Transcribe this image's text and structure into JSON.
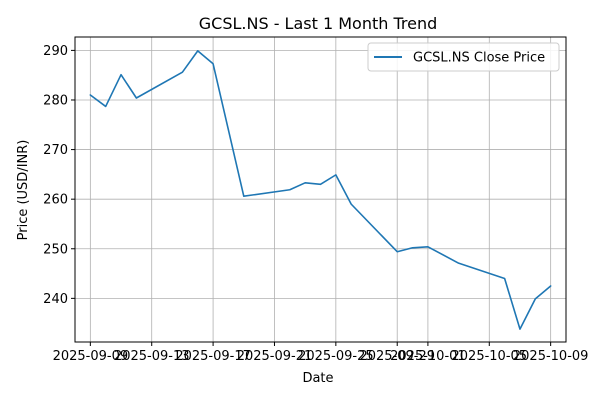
{
  "chart_data": {
    "type": "line",
    "title": "GCSL.NS - Last 1 Month Trend",
    "xlabel": "Date",
    "ylabel": "Price (USD/INR)",
    "grid": true,
    "legend_position": "top-right",
    "x_ticks": [
      "2025-09-09",
      "2025-09-13",
      "2025-09-17",
      "2025-09-21",
      "2025-09-25",
      "2025-09-29",
      "2025-10-01",
      "2025-10-05",
      "2025-10-09"
    ],
    "y_ticks": [
      240,
      250,
      260,
      270,
      280,
      290
    ],
    "ylim": [
      231.2,
      292.7
    ],
    "xlim": [
      "2025-09-08",
      "2025-10-10"
    ],
    "series": [
      {
        "name": "GCSL.NS Close Price",
        "color": "#1f77b4",
        "x": [
          "2025-09-09",
          "2025-09-10",
          "2025-09-11",
          "2025-09-12",
          "2025-09-15",
          "2025-09-16",
          "2025-09-17",
          "2025-09-19",
          "2025-09-22",
          "2025-09-23",
          "2025-09-24",
          "2025-09-25",
          "2025-09-26",
          "2025-09-29",
          "2025-09-30",
          "2025-10-01",
          "2025-10-03",
          "2025-10-06",
          "2025-10-07",
          "2025-10-08",
          "2025-10-09"
        ],
        "values": [
          281.0,
          278.7,
          285.1,
          280.4,
          285.6,
          289.9,
          287.3,
          260.6,
          261.9,
          263.3,
          263.0,
          264.9,
          259.0,
          249.4,
          250.2,
          250.4,
          247.1,
          244.0,
          233.8,
          239.9,
          242.5
        ]
      }
    ]
  }
}
